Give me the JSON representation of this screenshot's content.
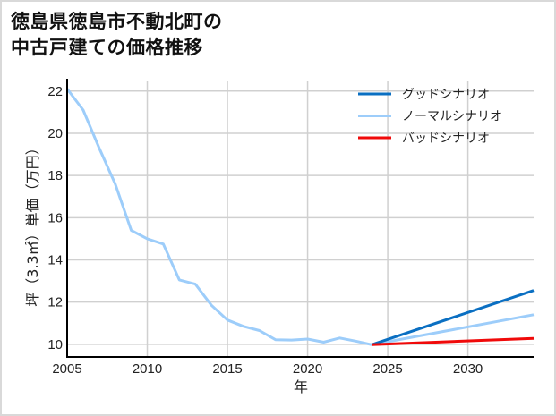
{
  "title": {
    "line1": "徳島県徳島市不動北町の",
    "line2": "中古戸建ての価格推移"
  },
  "colors": {
    "good": "#0a6fc2",
    "normal": "#9dcdfa",
    "bad": "#f00a0a",
    "grid": "#d0d0d0",
    "axis": "#000000"
  },
  "chart_data": {
    "type": "line",
    "title": "徳島県徳島市不動北町の中古戸建ての価格推移",
    "xlabel": "年",
    "ylabel": "坪（3.3㎡）単価（万円）",
    "xlim": [
      2005,
      2034.1
    ],
    "ylim": [
      9.4,
      22.5
    ],
    "xticks": [
      2005,
      2010,
      2015,
      2020,
      2025,
      2030
    ],
    "yticks": [
      10,
      12,
      14,
      16,
      18,
      20,
      22
    ],
    "grid": true,
    "legend_position": "upper right",
    "series": [
      {
        "name": "グッドシナリオ",
        "color": "#0a6fc2",
        "x": [
          2024,
          2034.1
        ],
        "values": [
          9.98,
          12.55
        ]
      },
      {
        "name": "ノーマルシナリオ",
        "color": "#9dcdfa",
        "x": [
          2005,
          2006,
          2007,
          2008,
          2009,
          2010,
          2011,
          2012,
          2013,
          2014,
          2015,
          2016,
          2017,
          2018,
          2019,
          2020,
          2021,
          2022,
          2023,
          2024,
          2034.1
        ],
        "values": [
          22.1,
          21.1,
          19.3,
          17.6,
          15.4,
          15.0,
          14.75,
          13.05,
          12.85,
          11.85,
          11.15,
          10.85,
          10.65,
          10.22,
          10.2,
          10.25,
          10.1,
          10.3,
          10.15,
          9.98,
          11.4
        ]
      },
      {
        "name": "バッドシナリオ",
        "color": "#f00a0a",
        "x": [
          2024,
          2034.1
        ],
        "values": [
          9.98,
          10.28
        ]
      }
    ]
  }
}
